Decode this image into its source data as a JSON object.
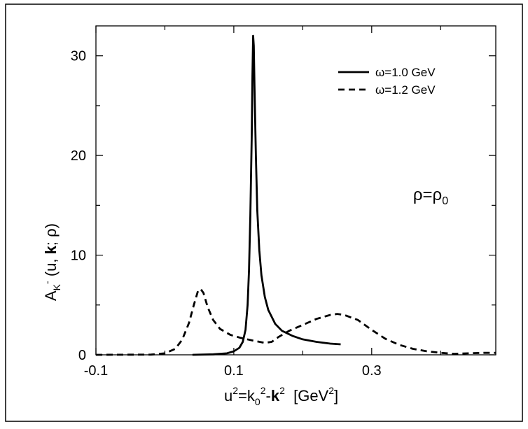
{
  "chart_data": {
    "type": "line",
    "title": "",
    "xlabel": {
      "base": "u",
      "sup1": "2",
      "eq": "=k",
      "sub": "0",
      "sup2": "2",
      "minus": "-",
      "bold": "k",
      "sup3": "2",
      "unit_open": "  [GeV",
      "unit_sup": "2",
      "unit_close": "]"
    },
    "ylabel": {
      "base": "A",
      "sub": "K",
      "sup": "-",
      "args_open": " (u, ",
      "bold": "k",
      "args_close": "; ρ)"
    },
    "xlim": [
      -0.1,
      0.48
    ],
    "ylim": [
      0,
      33
    ],
    "xticks": [
      {
        "value": -0.1,
        "label": "-0.1"
      },
      {
        "value": 0.1,
        "label": "0.1"
      },
      {
        "value": 0.3,
        "label": "0.3"
      }
    ],
    "yticks": [
      {
        "value": 0,
        "label": "0"
      },
      {
        "value": 10,
        "label": "10"
      },
      {
        "value": 20,
        "label": "20"
      },
      {
        "value": 30,
        "label": "30"
      }
    ],
    "legend_position": "top-right",
    "annotation": {
      "text": "ρ=ρ",
      "sub": "0",
      "x": 0.36,
      "y": 15.5
    },
    "series": [
      {
        "name": "ω=1.0 GeV",
        "style": "solid",
        "color": "#000000",
        "points": [
          [
            0.04,
            0.0
          ],
          [
            0.07,
            0.05
          ],
          [
            0.09,
            0.15
          ],
          [
            0.1,
            0.35
          ],
          [
            0.108,
            0.7
          ],
          [
            0.113,
            1.3
          ],
          [
            0.117,
            2.5
          ],
          [
            0.12,
            5.0
          ],
          [
            0.122,
            8.5
          ],
          [
            0.124,
            14.0
          ],
          [
            0.126,
            22.0
          ],
          [
            0.127,
            28.0
          ],
          [
            0.128,
            32.0
          ],
          [
            0.129,
            31.0
          ],
          [
            0.13,
            27.0
          ],
          [
            0.132,
            20.0
          ],
          [
            0.134,
            14.5
          ],
          [
            0.137,
            10.5
          ],
          [
            0.14,
            8.0
          ],
          [
            0.145,
            5.8
          ],
          [
            0.15,
            4.5
          ],
          [
            0.16,
            3.1
          ],
          [
            0.17,
            2.4
          ],
          [
            0.185,
            1.9
          ],
          [
            0.2,
            1.55
          ],
          [
            0.22,
            1.3
          ],
          [
            0.24,
            1.12
          ],
          [
            0.255,
            1.05
          ]
        ]
      },
      {
        "name": "ω=1.2 GeV",
        "style": "dashed",
        "color": "#000000",
        "points": [
          [
            -0.1,
            0.0
          ],
          [
            -0.02,
            0.02
          ],
          [
            0.0,
            0.15
          ],
          [
            0.015,
            0.6
          ],
          [
            0.025,
            1.5
          ],
          [
            0.035,
            3.2
          ],
          [
            0.042,
            5.0
          ],
          [
            0.048,
            6.4
          ],
          [
            0.052,
            6.6
          ],
          [
            0.056,
            6.2
          ],
          [
            0.062,
            4.8
          ],
          [
            0.07,
            3.5
          ],
          [
            0.08,
            2.6
          ],
          [
            0.095,
            2.0
          ],
          [
            0.11,
            1.7
          ],
          [
            0.13,
            1.4
          ],
          [
            0.145,
            1.2
          ],
          [
            0.155,
            1.3
          ],
          [
            0.165,
            1.8
          ],
          [
            0.18,
            2.4
          ],
          [
            0.2,
            3.0
          ],
          [
            0.22,
            3.6
          ],
          [
            0.24,
            4.0
          ],
          [
            0.25,
            4.1
          ],
          [
            0.26,
            4.0
          ],
          [
            0.28,
            3.5
          ],
          [
            0.3,
            2.5
          ],
          [
            0.32,
            1.6
          ],
          [
            0.34,
            1.0
          ],
          [
            0.36,
            0.6
          ],
          [
            0.38,
            0.35
          ],
          [
            0.4,
            0.2
          ],
          [
            0.42,
            0.1
          ],
          [
            0.44,
            0.15
          ],
          [
            0.46,
            0.2
          ],
          [
            0.48,
            0.2
          ]
        ]
      }
    ]
  }
}
